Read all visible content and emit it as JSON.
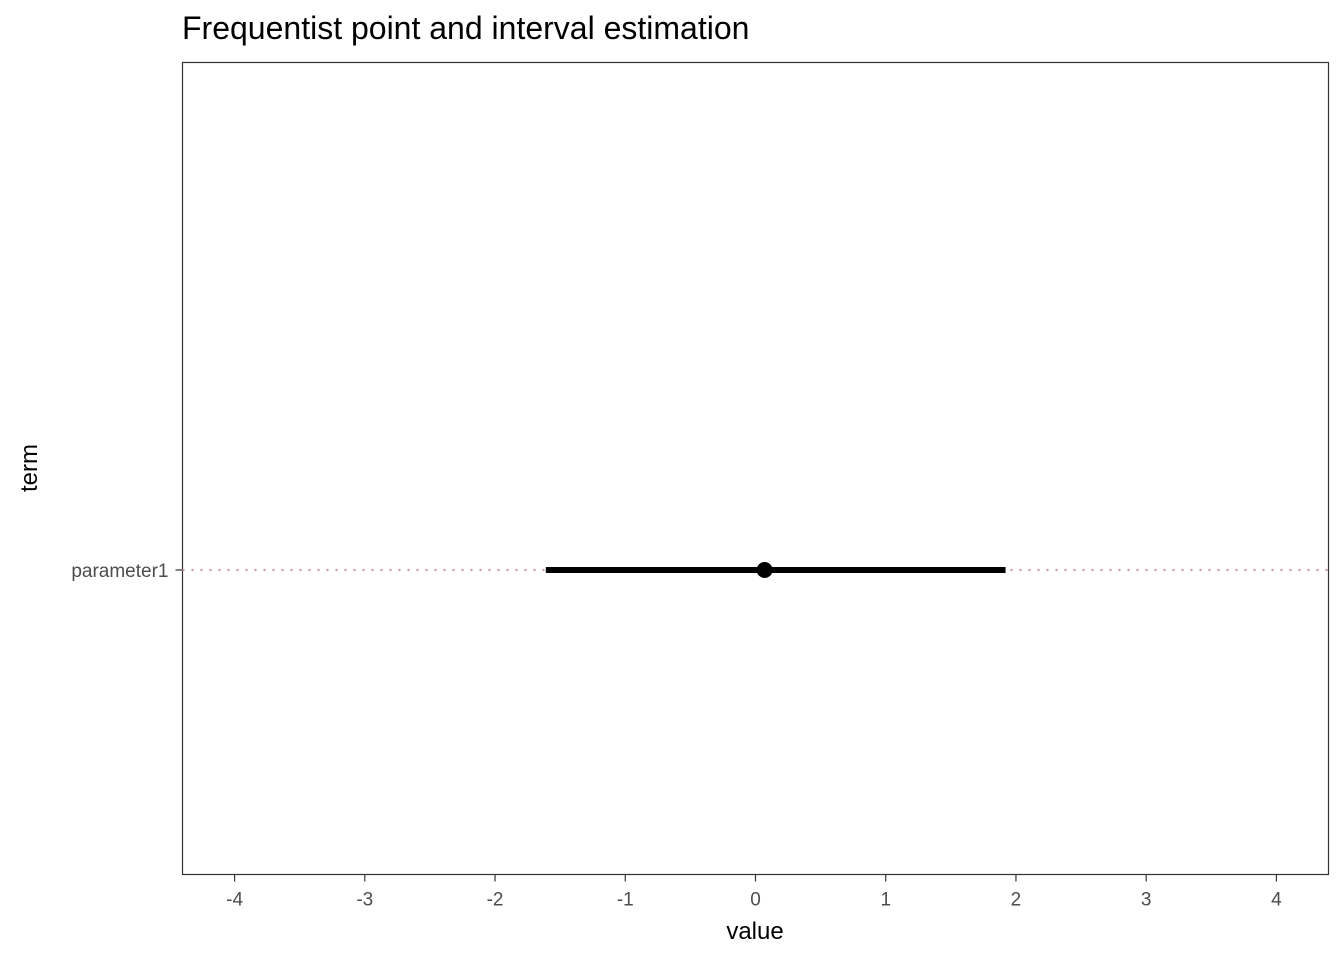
{
  "chart_data": {
    "type": "scatter",
    "title": "Frequentist point and interval estimation",
    "xlabel": "value",
    "ylabel": "term",
    "xlim": [
      -4.4,
      4.4
    ],
    "x_ticks": [
      -4,
      -3,
      -2,
      -1,
      0,
      1,
      2,
      3,
      4
    ],
    "x_tick_labels": [
      "-4",
      "-3",
      "-2",
      "-1",
      "0",
      "1",
      "2",
      "3",
      "4"
    ],
    "categories": [
      "parameter1"
    ],
    "points": [
      {
        "term": "parameter1",
        "estimate": 0.07,
        "conf_low": -1.61,
        "conf_high": 1.92
      }
    ],
    "grid": false,
    "reference_line_color": "#c49aa6",
    "interval_color": "#000000",
    "point_color": "#000000"
  }
}
